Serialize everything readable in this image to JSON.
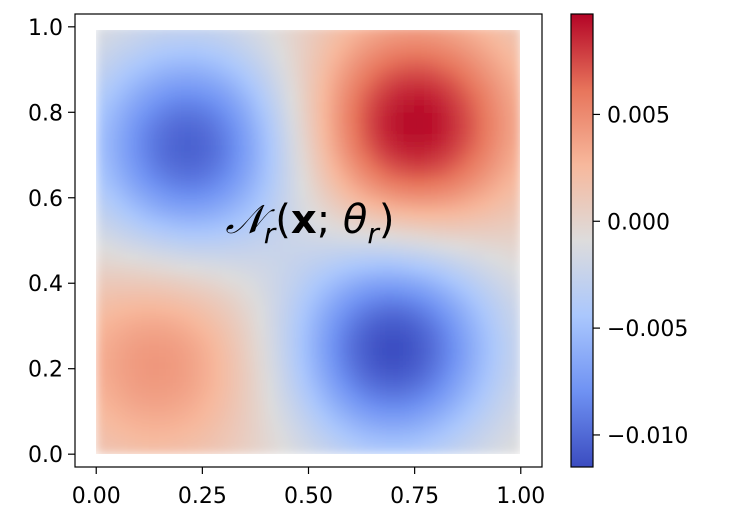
{
  "chart_data": {
    "type": "heatmap",
    "title": "",
    "xlabel": "",
    "ylabel": "",
    "xlim": [
      -0.05,
      1.05
    ],
    "ylim": [
      -0.03,
      1.03
    ],
    "x_ticks": [
      "0.00",
      "0.25",
      "0.50",
      "0.75",
      "1.00"
    ],
    "y_ticks": [
      "0.0",
      "0.2",
      "0.4",
      "0.6",
      "0.8",
      "1.0"
    ],
    "x_tick_values": [
      0.0,
      0.25,
      0.5,
      0.75,
      1.0
    ],
    "y_tick_values": [
      0.0,
      0.2,
      0.4,
      0.6,
      0.8,
      1.0
    ],
    "annotation": {
      "symbol": "𝒩",
      "subscript": "r",
      "open": "(",
      "bold_var": "x",
      "sep": "; ",
      "theta": "θ",
      "theta_sub": "r",
      "close": ")",
      "x": 0.5,
      "y": 0.56
    },
    "colormap": "coolwarm",
    "colormap_stops": [
      "#3b4cc0",
      "#6f92f3",
      "#aac7fd",
      "#dddcdc",
      "#f7b89c",
      "#e7745b",
      "#b40426"
    ],
    "value_range": [
      -0.0115,
      0.0097
    ],
    "colorbar_ticks": [
      "−0.010",
      "−0.005",
      "0.000",
      "0.005"
    ],
    "colorbar_tick_values": [
      -0.01,
      -0.005,
      0.0,
      0.005
    ],
    "features": [
      {
        "kind": "min",
        "x": 0.22,
        "y": 0.72,
        "value": -0.0105
      },
      {
        "kind": "min",
        "x": 0.7,
        "y": 0.25,
        "value": -0.0115
      },
      {
        "kind": "max",
        "x": 0.75,
        "y": 0.77,
        "value": 0.0097
      },
      {
        "kind": "max",
        "x": 0.15,
        "y": 0.22,
        "value": 0.0045
      }
    ]
  }
}
